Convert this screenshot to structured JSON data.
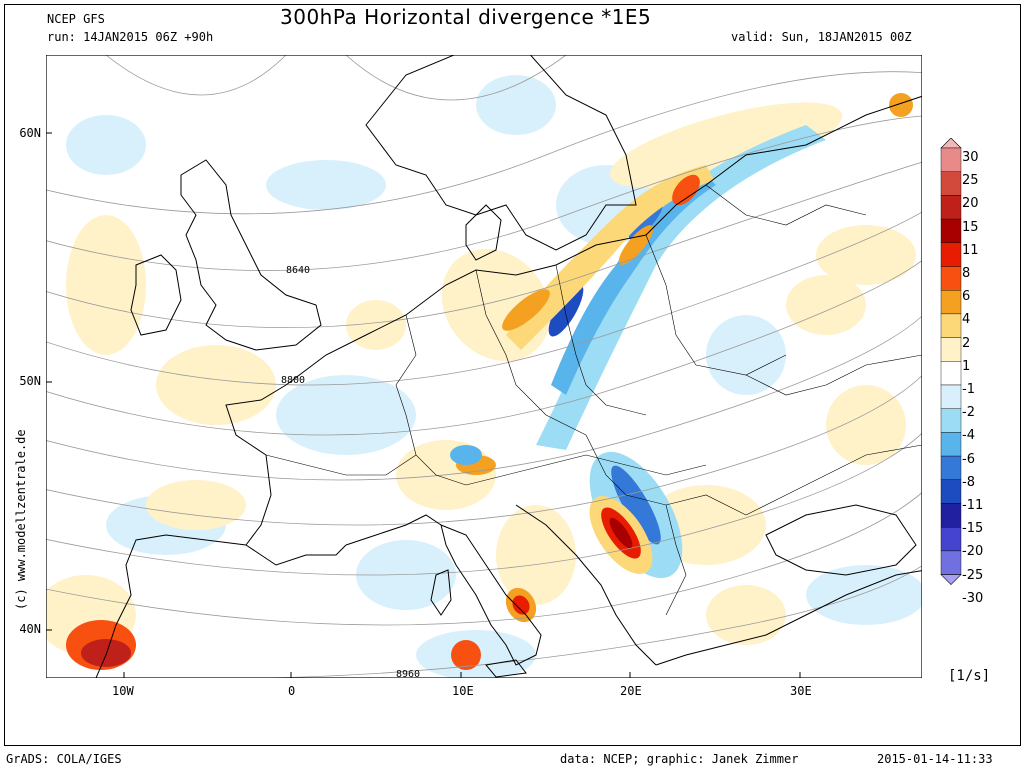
{
  "header": {
    "model": "NCEP GFS",
    "run": "run: 14JAN2015 06Z +90h",
    "title": "300hPa Horizontal divergence *1E5",
    "valid": "valid: Sun, 18JAN2015 00Z"
  },
  "axes": {
    "lat_labels": [
      "60N",
      "50N",
      "40N"
    ],
    "lon_labels": [
      "10W",
      "0",
      "10E",
      "20E",
      "30E"
    ]
  },
  "contours": {
    "labels": [
      "8640",
      "8800",
      "8960"
    ]
  },
  "colorbar": {
    "levels": [
      "30",
      "25",
      "20",
      "15",
      "11",
      "8",
      "6",
      "4",
      "2",
      "1",
      "-1",
      "-2",
      "-4",
      "-6",
      "-8",
      "-11",
      "-15",
      "-20",
      "-25",
      "-30"
    ],
    "colors": [
      "#f2b8b8",
      "#e88a8a",
      "#d24a3c",
      "#c0201a",
      "#a80000",
      "#e81c00",
      "#f85010",
      "#f4a020",
      "#fcd878",
      "#fff2c8",
      "#ffffff",
      "#d8f0fc",
      "#9cdcf4",
      "#5ab4ec",
      "#3478d8",
      "#1c4cc0",
      "#2020a0",
      "#4444d0",
      "#7070e0",
      "#a8a0f4"
    ],
    "unit": "[1/s]"
  },
  "side_label": "(c) www.modellzentrale.de",
  "footer": {
    "left": "GrADS: COLA/IGES",
    "credit": "data: NCEP; graphic: Janek Zimmer",
    "timestamp": "2015-01-14-11:33"
  }
}
